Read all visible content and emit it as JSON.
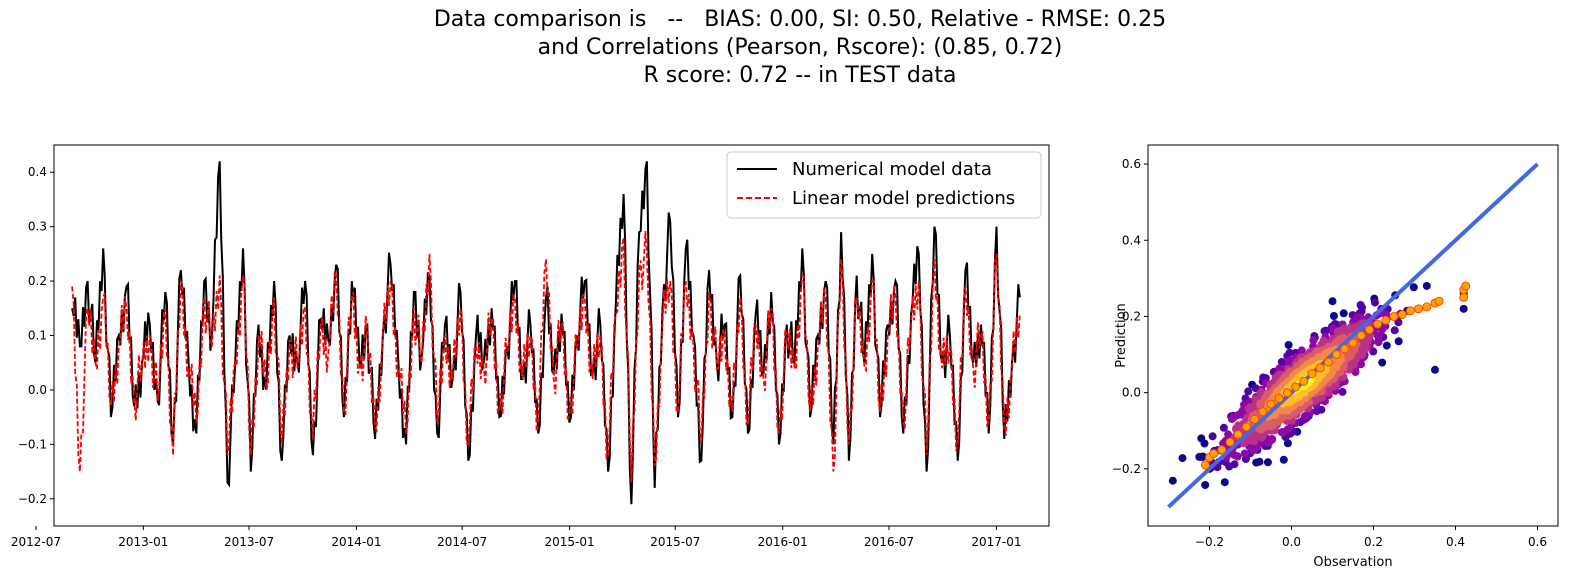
{
  "title_lines": [
    "Data comparison is   --   BIAS: 0.00, SI: 0.50, Relative - RMSE: 0.25",
    "and Correlations (Pearson, Rscore): (0.85, 0.72)",
    "R score: 0.72 -- in TEST data"
  ],
  "chart_data": [
    {
      "type": "line",
      "x_range": [
        "2012-08-01",
        "2017-04-01"
      ],
      "ylim": [
        -0.25,
        0.45
      ],
      "x_ticks": [
        "2012-07",
        "2013-01",
        "2013-07",
        "2014-01",
        "2014-07",
        "2015-01",
        "2015-07",
        "2016-01",
        "2016-07",
        "2017-01"
      ],
      "y_ticks": [
        "−0.2",
        "−0.1",
        "0.0",
        "0.1",
        "0.2",
        "0.3",
        "0.4"
      ],
      "y_tick_values": [
        -0.2,
        -0.1,
        0.0,
        0.1,
        0.2,
        0.3,
        0.4
      ],
      "x_start": "2012-09-01",
      "x_end": "2017-02-10",
      "legend_placement": "upper-right",
      "series": [
        {
          "name": "Numerical model data",
          "color": "#000000",
          "dash": "solid",
          "values_sampled_every_10_days": [
            0.15,
            0.08,
            0.2,
            0.05,
            0.26,
            -0.05,
            0.1,
            0.19,
            -0.03,
            0.05,
            0.12,
            -0.02,
            0.18,
            -0.1,
            0.22,
            0.05,
            -0.08,
            0.2,
            0.1,
            0.42,
            -0.17,
            0.05,
            0.26,
            -0.15,
            0.12,
            0.0,
            0.2,
            -0.13,
            0.1,
            0.05,
            0.2,
            -0.12,
            0.13,
            0.09,
            0.23,
            -0.05,
            0.2,
            0.05,
            0.12,
            -0.09,
            0.1,
            0.23,
            0.05,
            -0.1,
            0.18,
            0.06,
            0.21,
            -0.08,
            0.12,
            0.02,
            0.18,
            -0.13,
            0.1,
            0.05,
            0.15,
            -0.05,
            0.08,
            0.2,
            0.02,
            0.12,
            -0.08,
            0.17,
            0.03,
            0.14,
            -0.06,
            0.1,
            0.2,
            0.03,
            0.12,
            -0.15,
            0.16,
            0.36,
            -0.21,
            0.29,
            0.42,
            -0.18,
            0.15,
            0.31,
            -0.05,
            0.26,
            0.1,
            -0.13,
            0.22,
            0.05,
            0.12,
            -0.05,
            0.21,
            -0.08,
            0.14,
            0.03,
            0.18,
            -0.1,
            0.12,
            0.05,
            0.26,
            -0.05,
            0.1,
            0.2,
            -0.1,
            0.29,
            -0.13,
            0.21,
            0.05,
            0.25,
            -0.05,
            0.12,
            0.2,
            -0.08,
            0.14,
            0.25,
            -0.15,
            0.3,
            0.05,
            0.1,
            -0.13,
            0.22,
            0.05,
            0.12,
            -0.08,
            0.3,
            -0.09,
            0.05,
            0.17
          ]
        },
        {
          "name": "Linear model predictions",
          "color": "#ff0000",
          "dash": "dashed",
          "values_sampled_every_10_days": [
            0.19,
            -0.15,
            0.15,
            0.05,
            0.17,
            -0.03,
            0.08,
            0.15,
            -0.02,
            0.04,
            0.1,
            -0.02,
            0.15,
            -0.12,
            0.2,
            0.04,
            -0.06,
            0.17,
            0.08,
            0.21,
            -0.12,
            0.05,
            0.21,
            -0.12,
            0.1,
            0.0,
            0.17,
            -0.1,
            0.09,
            0.04,
            0.15,
            -0.09,
            0.12,
            0.07,
            0.21,
            -0.04,
            0.17,
            0.04,
            0.1,
            -0.07,
            0.09,
            0.2,
            0.04,
            -0.08,
            0.15,
            0.05,
            0.25,
            -0.06,
            0.1,
            0.02,
            0.15,
            -0.1,
            0.08,
            0.04,
            0.13,
            -0.04,
            0.07,
            0.17,
            0.02,
            0.1,
            -0.06,
            0.24,
            0.02,
            0.12,
            -0.05,
            0.08,
            0.17,
            0.02,
            0.1,
            -0.12,
            0.14,
            0.28,
            -0.17,
            0.22,
            0.25,
            -0.14,
            0.12,
            0.2,
            -0.04,
            0.2,
            0.08,
            -0.1,
            0.18,
            0.04,
            0.1,
            -0.04,
            0.17,
            -0.06,
            0.12,
            0.02,
            0.15,
            -0.08,
            0.1,
            0.04,
            0.21,
            -0.04,
            0.08,
            0.17,
            -0.15,
            0.24,
            -0.1,
            0.17,
            0.04,
            0.2,
            -0.04,
            0.1,
            0.17,
            -0.06,
            0.12,
            0.2,
            -0.12,
            0.24,
            0.04,
            0.08,
            -0.1,
            0.19,
            0.04,
            0.1,
            -0.06,
            0.25,
            -0.07,
            0.04,
            0.14
          ]
        }
      ]
    },
    {
      "type": "scatter",
      "xlabel": "Observation",
      "ylabel": "Prediction",
      "xlim": [
        -0.35,
        0.65
      ],
      "ylim": [
        -0.35,
        0.65
      ],
      "x_ticks": [
        "−0.2",
        "0.0",
        "0.2",
        "0.4",
        "0.6"
      ],
      "x_tick_values": [
        -0.2,
        0.0,
        0.2,
        0.4,
        0.6
      ],
      "y_ticks": [
        "−0.2",
        "0.0",
        "0.2",
        "0.4",
        "0.6"
      ],
      "y_tick_values": [
        -0.2,
        0.0,
        0.2,
        0.4,
        0.6
      ],
      "density_colors": [
        "#0d0887",
        "#5302a3",
        "#8b0aa5",
        "#b83289",
        "#db5c68",
        "#f48849",
        "#febd2a",
        "#f0f921"
      ],
      "fit_line": {
        "x": [
          -0.3,
          0.6
        ],
        "y": [
          -0.3,
          0.6
        ],
        "color": "#4169e1"
      },
      "binned_curve": {
        "color": "#ffa500",
        "edge": "#ff4500",
        "points": [
          [
            -0.21,
            -0.19
          ],
          [
            -0.2,
            -0.17
          ],
          [
            -0.19,
            -0.16
          ],
          [
            -0.17,
            -0.15
          ],
          [
            -0.15,
            -0.13
          ],
          [
            -0.13,
            -0.11
          ],
          [
            -0.11,
            -0.09
          ],
          [
            -0.09,
            -0.07
          ],
          [
            -0.07,
            -0.05
          ],
          [
            -0.05,
            -0.03
          ],
          [
            -0.03,
            -0.015
          ],
          [
            -0.01,
            0.0
          ],
          [
            0.01,
            0.015
          ],
          [
            0.03,
            0.03
          ],
          [
            0.05,
            0.05
          ],
          [
            0.07,
            0.065
          ],
          [
            0.09,
            0.08
          ],
          [
            0.11,
            0.1
          ],
          [
            0.13,
            0.115
          ],
          [
            0.15,
            0.13
          ],
          [
            0.17,
            0.15
          ],
          [
            0.19,
            0.165
          ],
          [
            0.21,
            0.18
          ],
          [
            0.23,
            0.19
          ],
          [
            0.25,
            0.2
          ],
          [
            0.27,
            0.205
          ],
          [
            0.29,
            0.215
          ],
          [
            0.31,
            0.22
          ],
          [
            0.33,
            0.225
          ],
          [
            0.35,
            0.235
          ],
          [
            0.36,
            0.24
          ],
          [
            0.42,
            0.25
          ],
          [
            0.42,
            0.27
          ],
          [
            0.425,
            0.28
          ]
        ]
      },
      "outliers": [
        [
          0.42,
          0.25
        ],
        [
          0.42,
          0.22
        ],
        [
          0.42,
          0.26
        ],
        [
          0.35,
          0.06
        ],
        [
          0.33,
          0.28
        ],
        [
          -0.22,
          -0.12
        ],
        [
          -0.2,
          -0.2
        ],
        [
          0.1,
          0.24
        ]
      ]
    }
  ]
}
